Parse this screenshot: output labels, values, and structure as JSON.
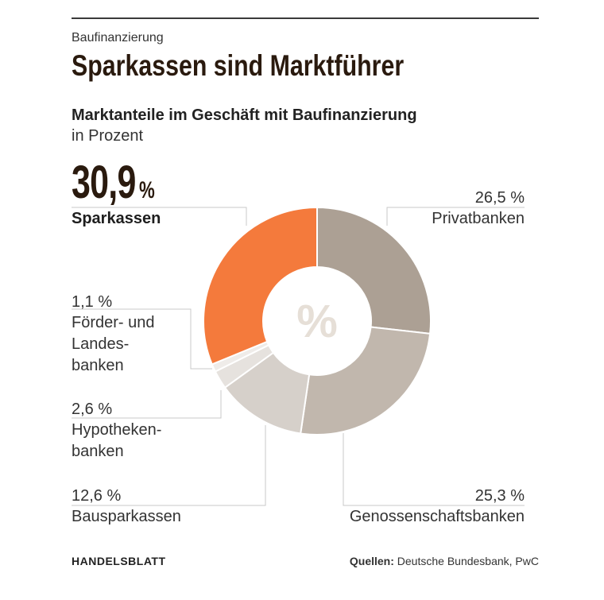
{
  "header": {
    "kicker": "Baufinanzierung",
    "headline": "Sparkassen sind Marktführer",
    "subtitle": "Marktanteile im Geschäft mit Baufinanzierung",
    "unit": "in Prozent"
  },
  "highlight": {
    "value": "30,9",
    "unit": "%",
    "label": "Sparkassen"
  },
  "center_symbol": "%",
  "chart_data": {
    "type": "pie",
    "style": "donut",
    "unit": "in Prozent",
    "slices": [
      {
        "name": "Privatbanken",
        "value": 26.5,
        "label": "26,5 %",
        "color": "#aca094"
      },
      {
        "name": "Genossenschaftsbanken",
        "value": 25.3,
        "label": "25,3 %",
        "color": "#c1b7ad"
      },
      {
        "name": "Bausparkassen",
        "value": 12.6,
        "label": "12,6 %",
        "color": "#d6d0ca"
      },
      {
        "name": "Hypothekenbanken",
        "value": 2.6,
        "label": "2,6 %",
        "color": "#e6e2de"
      },
      {
        "name": "Förder- und Landesbanken",
        "value": 1.1,
        "label": "1,1 %",
        "color": "#efece9"
      },
      {
        "name": "Sparkassen",
        "value": 30.9,
        "label": "30,9 %",
        "color": "#f47a3c"
      }
    ]
  },
  "labels": {
    "privat_value": "26,5 %",
    "privat_name": "Privatbanken",
    "foerder_value": "1,1 %",
    "foerder_name": "Förder- und\nLandes-\nbanken",
    "hypo_value": "2,6 %",
    "hypo_name": "Hypotheken-\nbanken",
    "bauspar_value": "12,6 %",
    "bauspar_name": "Bausparkassen",
    "geno_value": "25,3 %",
    "geno_name": "Genossenschaftsbanken"
  },
  "footer": {
    "brand": "HANDELSBLATT",
    "source_label": "Quellen:",
    "source_text": "Deutsche Bundesbank, PwC"
  }
}
